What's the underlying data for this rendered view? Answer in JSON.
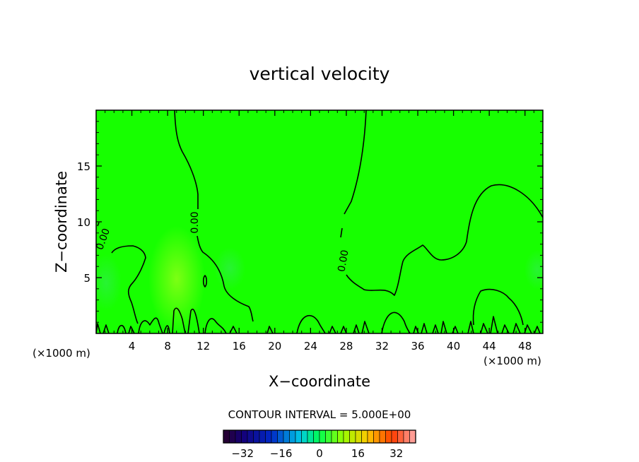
{
  "chart_data": {
    "type": "heatmap",
    "title": "vertical velocity",
    "xlabel": "X−coordinate",
    "ylabel": "Z−coordinate",
    "x_unit_left": "(×1000 m)",
    "x_unit_right": "(×1000 m)",
    "xlim": [
      0,
      50
    ],
    "ylim": [
      0,
      20
    ],
    "x_ticks": [
      4,
      8,
      12,
      16,
      20,
      24,
      28,
      32,
      36,
      40,
      44,
      48
    ],
    "y_ticks": [
      5,
      10,
      15
    ],
    "x_tick_labels": [
      "4",
      "8",
      "12",
      "16",
      "20",
      "24",
      "28",
      "32",
      "36",
      "40",
      "44",
      "48"
    ],
    "y_tick_labels": [
      "5",
      "10",
      "15"
    ],
    "field_value_dominant": 0,
    "contour_label": "0.00",
    "contour_interval_text": "CONTOUR INTERVAL = 5.000E+00",
    "colorbar": {
      "range": [
        -40,
        40
      ],
      "step": 2.5,
      "ticks": [
        -32,
        -16,
        0,
        16,
        32
      ],
      "tick_labels": [
        "−32",
        "−16",
        "0",
        "16",
        "32"
      ]
    },
    "colors": {
      "field_green": "#17ff00",
      "contour_line": "#000000"
    }
  }
}
